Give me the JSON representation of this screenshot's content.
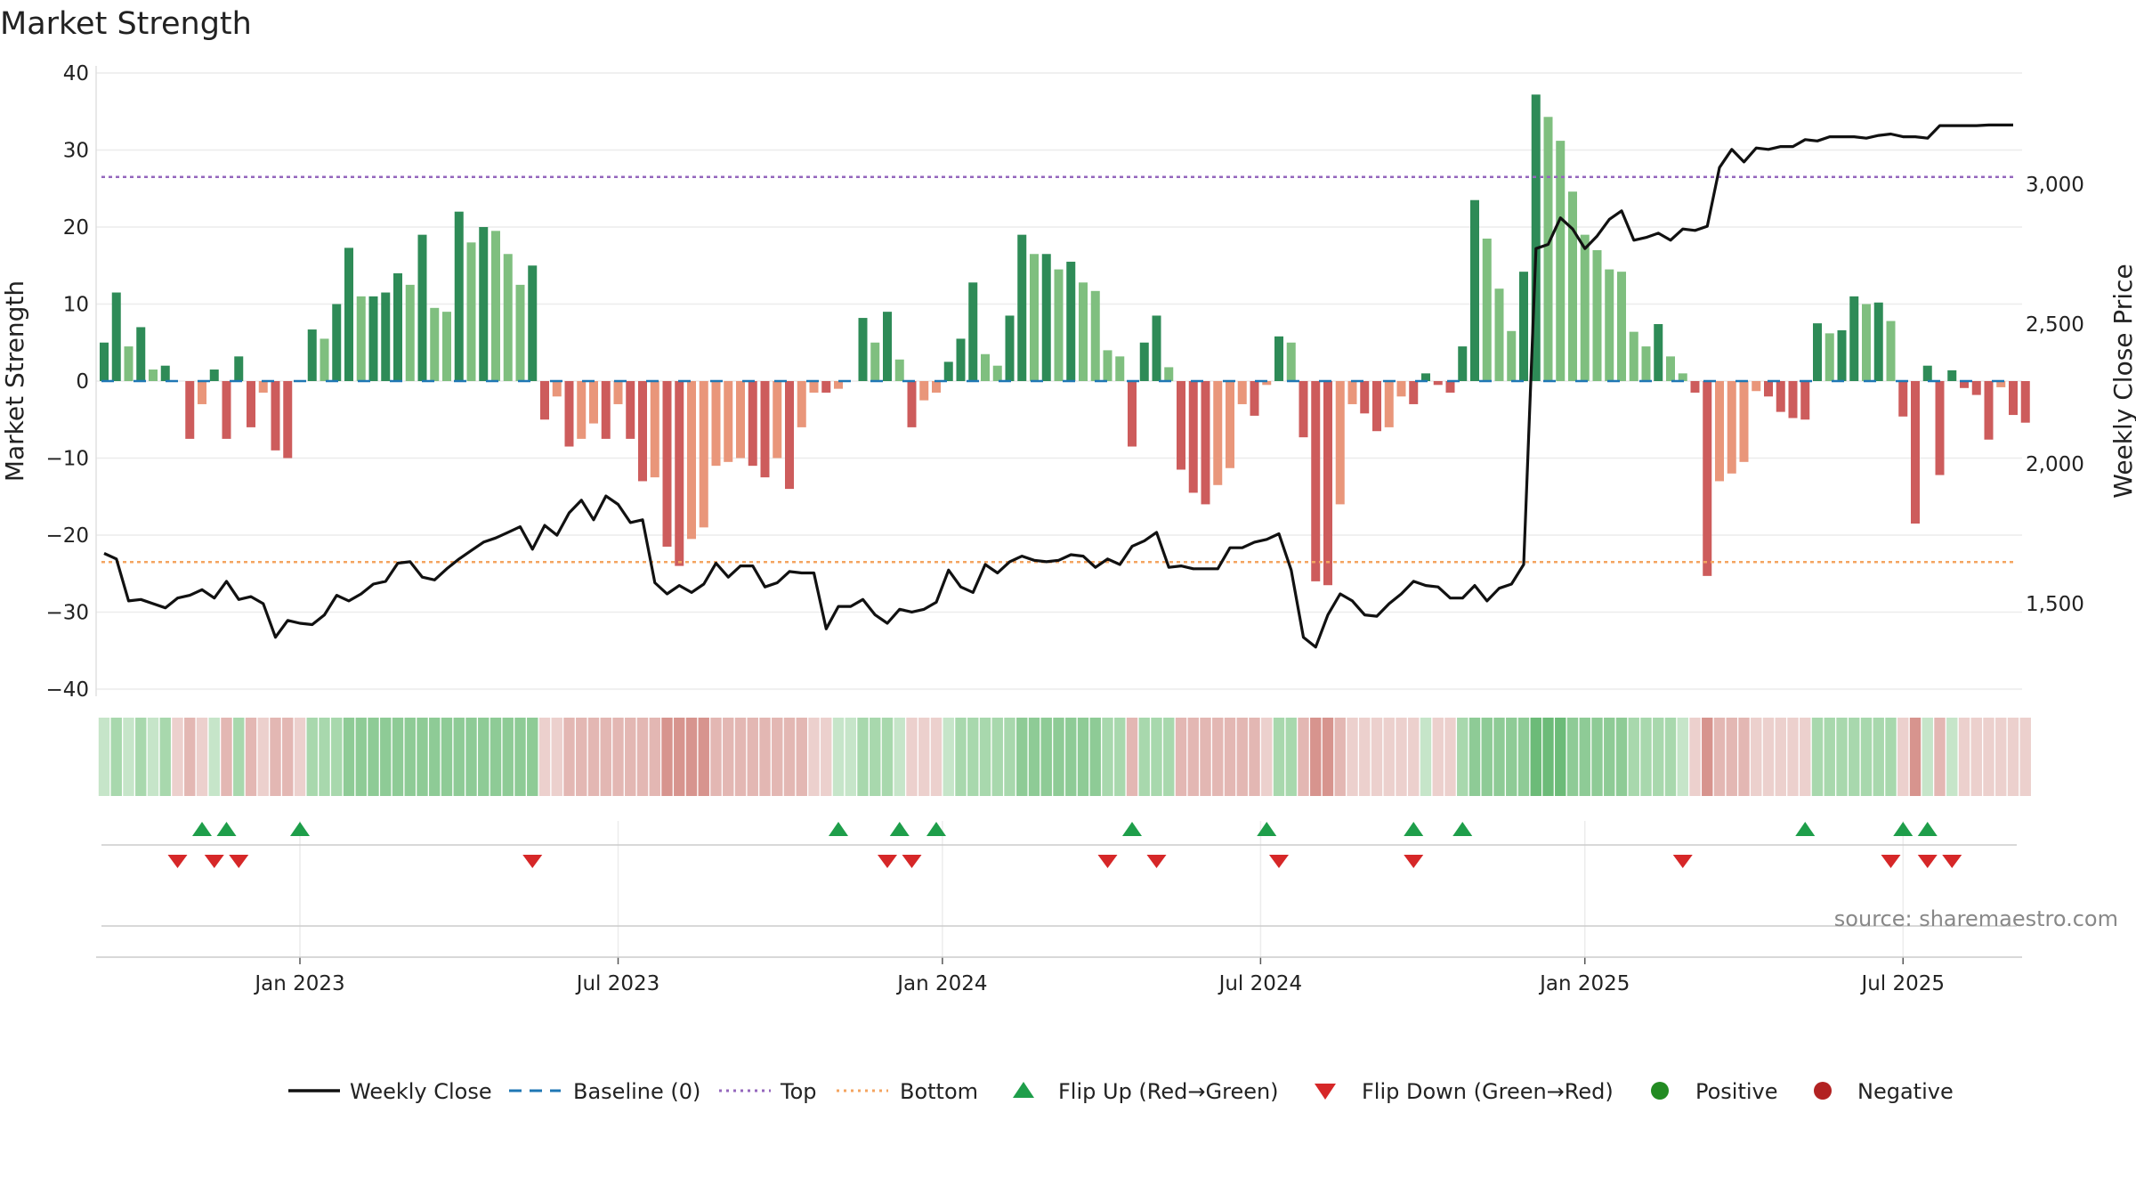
{
  "chart_data": {
    "type": "bar",
    "title": "Market Strength",
    "ylabel": "Market Strength",
    "y2label": "Weekly Close Price",
    "ylim": [
      -40,
      40
    ],
    "y2lim": [
      1150,
      3400
    ],
    "y_ticks": [
      "40",
      "30",
      "20",
      "10",
      "0",
      "−10",
      "−20",
      "−30",
      "−40"
    ],
    "y_tick_values": [
      40,
      30,
      20,
      10,
      0,
      -10,
      -20,
      -30,
      -40
    ],
    "y2_ticks": [
      "3,000",
      "2,500",
      "2,000",
      "1,500"
    ],
    "y2_tick_values": [
      3000,
      2500,
      2000,
      1500
    ],
    "x_ticks": [
      "Jan 2023",
      "Jul 2023",
      "Jan 2024",
      "Jul 2024",
      "Jan 2025",
      "Jul 2025"
    ],
    "x_tick_weeks": [
      16,
      42,
      68.5,
      94.5,
      121,
      147
    ],
    "top_line": 26.5,
    "bottom_line": -23.5,
    "source": "source: sharemaestro.com",
    "legend": [
      "Weekly Close",
      "Baseline (0)",
      "Top",
      "Bottom",
      "Flip Up (Red→Green)",
      "Flip Down (Green→Red)",
      "Positive",
      "Negative"
    ],
    "colors": {
      "strong_green": "#2e8b57",
      "light_green": "#7fbf7f",
      "strong_red": "#cd5c5c",
      "light_red": "#e9967a",
      "close_line": "#111111",
      "baseline": "#1f77b4",
      "top": "#9467bd",
      "bottom": "#f4a460",
      "flip_up": "#1e9e4a",
      "flip_down": "#d62728",
      "positive": "#228b22",
      "negative": "#b22222"
    },
    "strength": [
      5,
      11.5,
      4.5,
      7,
      1.5,
      2,
      0,
      -7.5,
      -3,
      1.5,
      -7.5,
      3.2,
      -6,
      -1.5,
      -9,
      -10,
      0,
      6.7,
      5.5,
      10,
      17.3,
      11,
      11,
      11.5,
      14,
      12.5,
      19,
      9.5,
      9,
      22,
      18,
      20,
      19.5,
      16.5,
      12.5,
      15,
      -5,
      -2,
      -8.5,
      -7.5,
      -5.5,
      -7.5,
      -3,
      -7.5,
      -13,
      -12.5,
      -21.5,
      -24,
      -20.5,
      -19,
      -11,
      -10.5,
      -10,
      -11,
      -12.5,
      -10,
      -14,
      -6,
      -1.5,
      -1.5,
      -1,
      0,
      8.2,
      5,
      9,
      2.8,
      -6,
      -2.5,
      -1.5,
      2.5,
      5.5,
      12.8,
      3.5,
      2,
      8.5,
      19,
      16.5,
      16.5,
      14.5,
      15.5,
      12.8,
      11.7,
      4,
      3.2,
      -8.5,
      5,
      8.5,
      1.8,
      -11.5,
      -14.5,
      -16,
      -13.5,
      -11.3,
      -3,
      -4.5,
      -0.5,
      5.8,
      5,
      -7.3,
      -26,
      -26.5,
      -16,
      -3,
      -4.2,
      -6.5,
      -6,
      -2,
      -3,
      1,
      -0.5,
      -1.5,
      4.5,
      23.5,
      18.5,
      12,
      6.5,
      14.2,
      37.2,
      34.3,
      31.2,
      24.6,
      19,
      17,
      14.5,
      14.2,
      6.4,
      4.5,
      7.4,
      3.2,
      1,
      -1.5,
      -25.3,
      -13,
      -12,
      -10.5,
      -1.3,
      -2,
      -4,
      -4.8,
      -5,
      7.5,
      6.2,
      6.6,
      11,
      10,
      10.2,
      7.8,
      -4.6,
      -18.5,
      2,
      -12.2,
      1.4,
      -0.9,
      -1.8,
      -7.6,
      -0.8,
      -4.4,
      -5.4
    ],
    "close": [
      1680,
      1660,
      1510,
      1515,
      1500,
      1485,
      1520,
      1530,
      1550,
      1520,
      1580,
      1515,
      1525,
      1500,
      1380,
      1440,
      1430,
      1425,
      1460,
      1530,
      1510,
      1535,
      1570,
      1580,
      1645,
      1650,
      1595,
      1585,
      1625,
      1660,
      1690,
      1720,
      1735,
      1755,
      1775,
      1695,
      1780,
      1745,
      1825,
      1870,
      1800,
      1885,
      1855,
      1790,
      1800,
      1575,
      1535,
      1565,
      1540,
      1570,
      1645,
      1595,
      1635,
      1635,
      1560,
      1575,
      1615,
      1610,
      1610,
      1410,
      1490,
      1490,
      1515,
      1460,
      1430,
      1480,
      1470,
      1480,
      1505,
      1620,
      1560,
      1540,
      1640,
      1610,
      1650,
      1670,
      1655,
      1650,
      1655,
      1675,
      1670,
      1630,
      1660,
      1640,
      1705,
      1725,
      1755,
      1630,
      1635,
      1625,
      1625,
      1625,
      1700,
      1700,
      1720,
      1730,
      1750,
      1620,
      1380,
      1345,
      1460,
      1535,
      1510,
      1460,
      1455,
      1500,
      1535,
      1580,
      1565,
      1560,
      1520,
      1520,
      1565,
      1510,
      1555,
      1570,
      1640,
      2770,
      2785,
      2880,
      2840,
      2770,
      2815,
      2875,
      2905,
      2800,
      2810,
      2825,
      2800,
      2840,
      2835,
      2850,
      3060,
      3125,
      3080,
      3130,
      3125,
      3135,
      3135,
      3160,
      3155,
      3170,
      3170,
      3170,
      3165,
      3175,
      3180,
      3170,
      3170,
      3165,
      3210,
      3210,
      3210,
      3210,
      3212,
      3212,
      3212
    ],
    "heat_levels": [
      1,
      2,
      1,
      2,
      1,
      2,
      -1,
      -2,
      -1,
      1,
      -2,
      2,
      -2,
      -1,
      -2,
      -2,
      -1,
      2,
      2,
      2,
      3,
      3,
      3,
      3,
      3,
      3,
      3,
      3,
      3,
      3,
      3,
      3,
      3,
      3,
      3,
      3,
      -1,
      -1,
      -2,
      -2,
      -2,
      -2,
      -2,
      -2,
      -2,
      -2,
      -3,
      -3,
      -3,
      -3,
      -2,
      -2,
      -2,
      -2,
      -2,
      -2,
      -2,
      -2,
      -1,
      -1,
      1,
      1,
      2,
      2,
      2,
      1,
      -1,
      -1,
      -1,
      1,
      2,
      2,
      2,
      2,
      2,
      3,
      3,
      3,
      3,
      3,
      3,
      3,
      2,
      2,
      -2,
      2,
      2,
      2,
      -2,
      -2,
      -2,
      -2,
      -2,
      -2,
      -2,
      -1,
      2,
      2,
      -2,
      -3,
      -3,
      -2,
      -1,
      -1,
      -1,
      -1,
      -1,
      -1,
      1,
      -1,
      -1,
      2,
      3,
      3,
      3,
      3,
      3,
      4,
      4,
      4,
      3,
      3,
      3,
      3,
      3,
      2,
      2,
      2,
      2,
      1,
      -1,
      -3,
      -2,
      -2,
      -2,
      -1,
      -1,
      -1,
      -1,
      -1,
      2,
      2,
      2,
      2,
      2,
      2,
      2,
      -1,
      -3,
      1,
      -2,
      1,
      -1,
      -1,
      -1,
      -1,
      -1,
      -1
    ],
    "flip_up_weeks": [
      8,
      10,
      16,
      60,
      65,
      68,
      84,
      95,
      107,
      111,
      139,
      147,
      149
    ],
    "flip_down_weeks": [
      6,
      9,
      11,
      35,
      64,
      66,
      82,
      86,
      96,
      107,
      129,
      146,
      149,
      151
    ]
  }
}
